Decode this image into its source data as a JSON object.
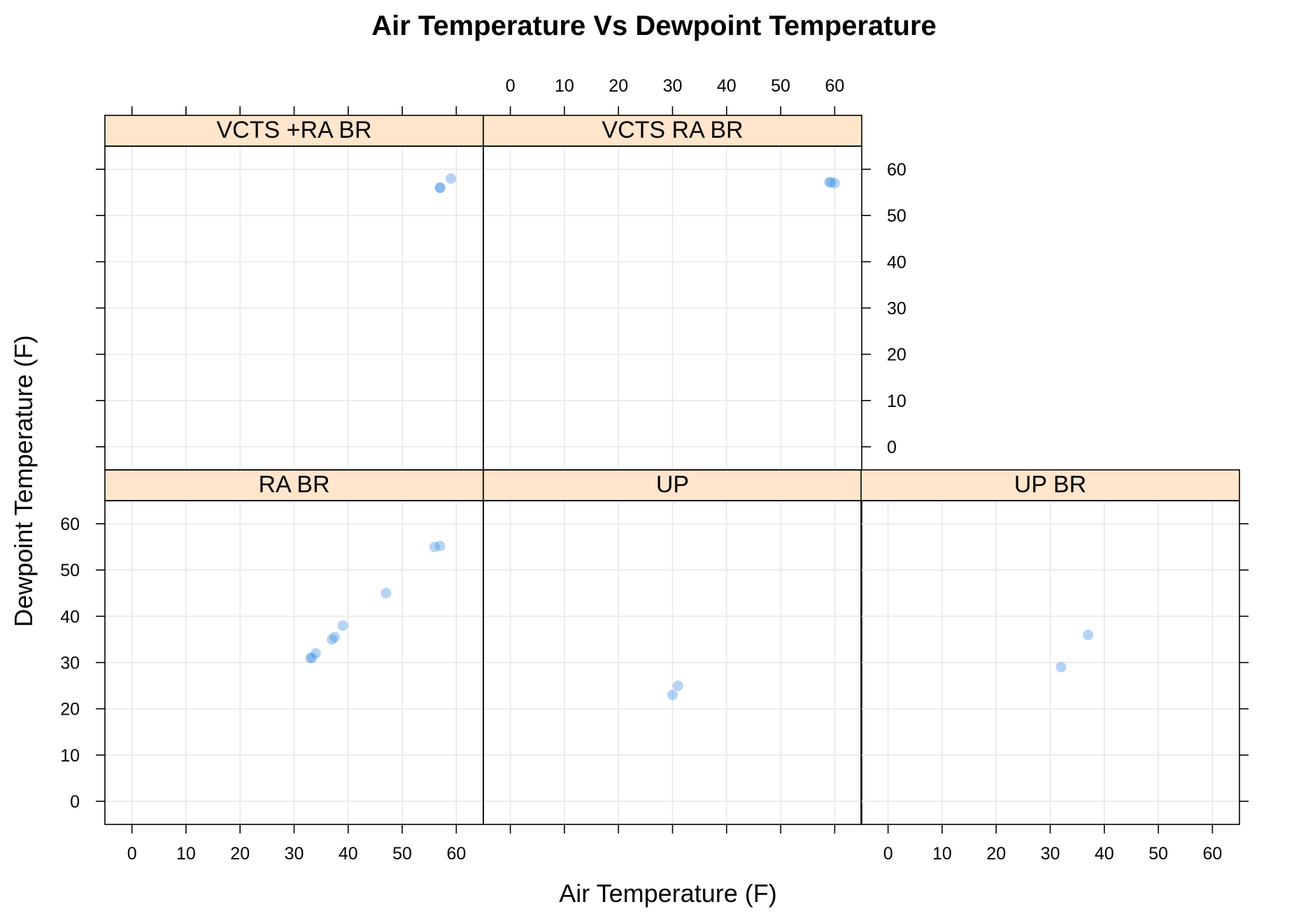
{
  "chart_data": {
    "type": "scatter",
    "title": "Air Temperature Vs Dewpoint Temperature",
    "xlabel": "Air Temperature (F)",
    "ylabel": "Dewpoint Temperature (F)",
    "xlim": [
      -5,
      65
    ],
    "ylim": [
      -5,
      65
    ],
    "x_ticks": [
      0,
      10,
      20,
      30,
      40,
      50,
      60
    ],
    "y_ticks": [
      0,
      10,
      20,
      30,
      40,
      50,
      60
    ],
    "grid": true,
    "point_color": "#3c8fe6",
    "strip_color": "#ffe5cc",
    "panels": [
      {
        "label": "RA BR",
        "points": [
          [
            33,
            31
          ],
          [
            33.3,
            31
          ],
          [
            34,
            32
          ],
          [
            37,
            35
          ],
          [
            37.5,
            35.5
          ],
          [
            39,
            38
          ],
          [
            47,
            45
          ],
          [
            56,
            55
          ],
          [
            57,
            55.2
          ]
        ]
      },
      {
        "label": "UP",
        "points": [
          [
            30,
            23
          ],
          [
            31,
            25
          ]
        ]
      },
      {
        "label": "UP BR",
        "points": [
          [
            32,
            29
          ],
          [
            37,
            36
          ]
        ]
      },
      {
        "label": "VCTS +RA BR",
        "points": [
          [
            57,
            56
          ],
          [
            57,
            56
          ],
          [
            59,
            58
          ]
        ]
      },
      {
        "label": "VCTS RA BR",
        "points": [
          [
            59,
            57.2
          ],
          [
            59.3,
            57.2
          ],
          [
            60,
            57
          ]
        ]
      }
    ]
  }
}
